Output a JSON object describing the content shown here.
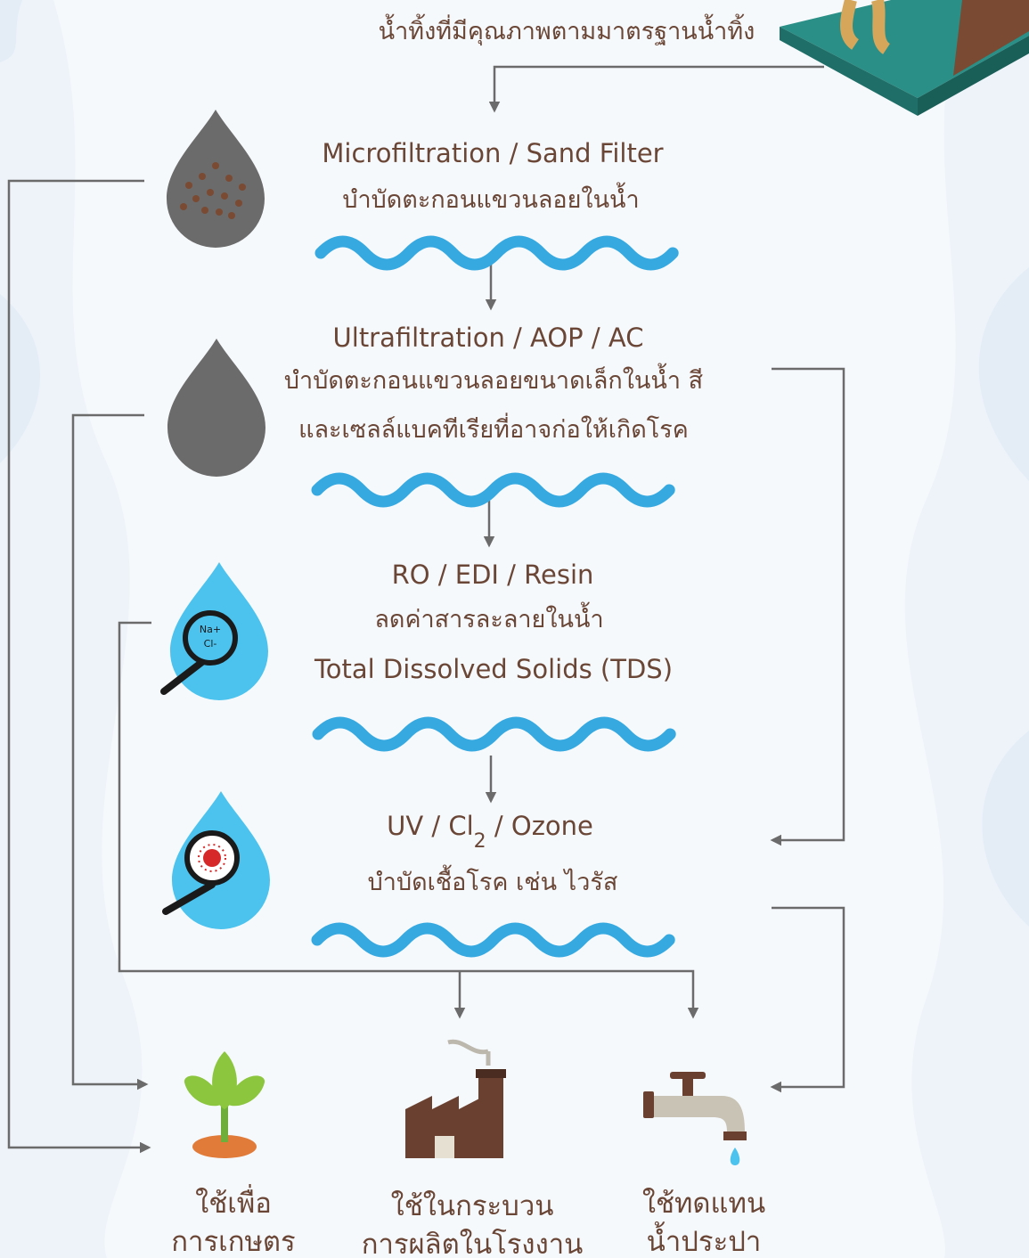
{
  "header": {
    "title": "น้ำทิ้งที่มีคุณภาพตามมาตรฐานน้ำทิ้ง"
  },
  "stages": [
    {
      "title": "Microfiltration / Sand Filter",
      "lines": [
        "บำบัดตะกอนแขวนลอยในน้ำ"
      ]
    },
    {
      "title": "Ultrafiltration / AOP / AC",
      "lines": [
        "บำบัดตะกอนแขวนลอยขนาดเล็กในน้ำ สี",
        "และเซลล์แบคทีเรียที่อาจก่อให้เกิดโรค"
      ]
    },
    {
      "title": "RO / EDI / Resin",
      "lines": [
        "ลดค่าสารละลายในน้ำ",
        "Total Dissolved Solids (TDS)"
      ],
      "icon_labels": [
        "Na+",
        "Cl-"
      ]
    },
    {
      "title_parts": [
        "UV / Cl",
        "2",
        " / Ozone"
      ],
      "lines": [
        "บำบัดเชื้อโรค เช่น ไวรัส"
      ]
    }
  ],
  "outputs": [
    {
      "lines": [
        "ใช้เพื่อ",
        "การเกษตร"
      ]
    },
    {
      "lines": [
        "ใช้ในกระบวน",
        "การผลิตในโรงงาน"
      ]
    },
    {
      "lines": [
        "ใช้ทดแทน",
        "น้ำประปา"
      ]
    }
  ]
}
